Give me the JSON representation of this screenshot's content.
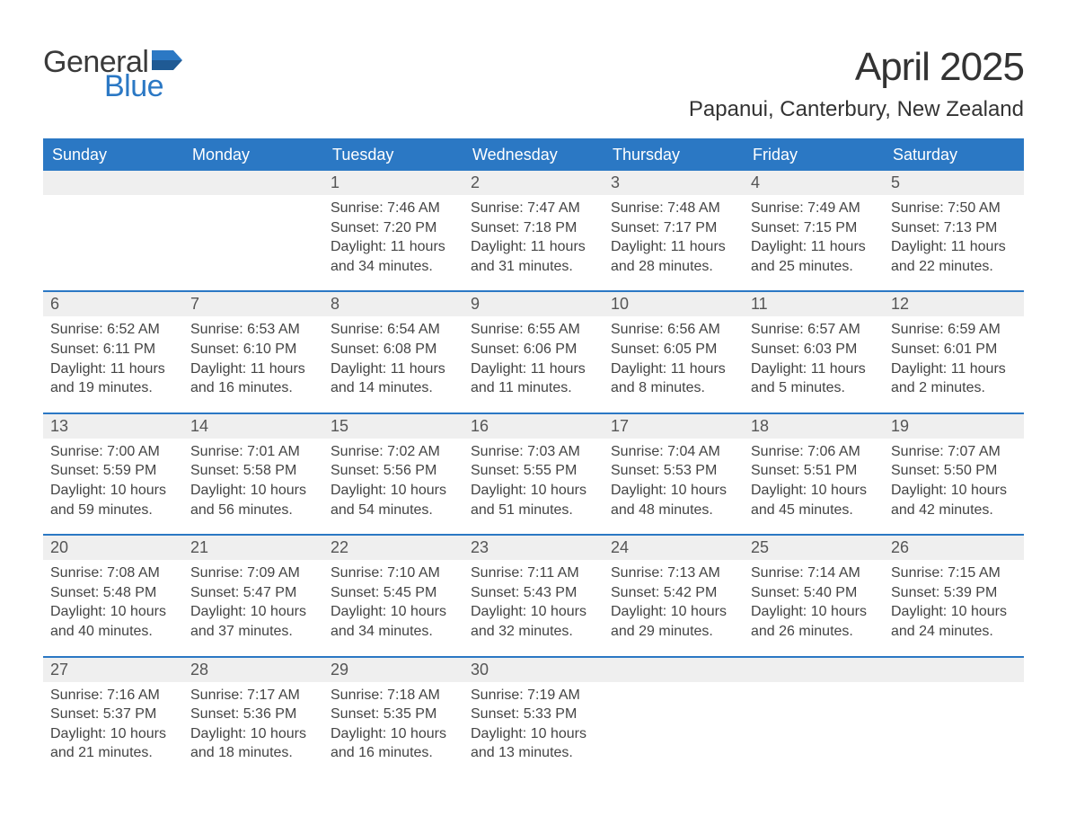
{
  "brand": {
    "general": "General",
    "blue": "Blue",
    "flag_color": "#2b78c4"
  },
  "title": "April 2025",
  "location": "Papanui, Canterbury, New Zealand",
  "colors": {
    "header_bg": "#2b78c4",
    "header_text": "#ffffff",
    "daynum_bg": "#efefef",
    "week_border": "#2b78c4",
    "body_text": "#424242",
    "page_bg": "#ffffff"
  },
  "typography": {
    "title_fontsize": 44,
    "location_fontsize": 24,
    "weekday_fontsize": 18,
    "daynum_fontsize": 18,
    "body_fontsize": 16
  },
  "layout": {
    "columns": 7,
    "rows": 5,
    "leading_blanks": 2,
    "trailing_blanks": 3
  },
  "weekdays": [
    "Sunday",
    "Monday",
    "Tuesday",
    "Wednesday",
    "Thursday",
    "Friday",
    "Saturday"
  ],
  "days": [
    {
      "n": "1",
      "sr": "Sunrise: 7:46 AM",
      "ss": "Sunset: 7:20 PM",
      "dl": "Daylight: 11 hours and 34 minutes."
    },
    {
      "n": "2",
      "sr": "Sunrise: 7:47 AM",
      "ss": "Sunset: 7:18 PM",
      "dl": "Daylight: 11 hours and 31 minutes."
    },
    {
      "n": "3",
      "sr": "Sunrise: 7:48 AM",
      "ss": "Sunset: 7:17 PM",
      "dl": "Daylight: 11 hours and 28 minutes."
    },
    {
      "n": "4",
      "sr": "Sunrise: 7:49 AM",
      "ss": "Sunset: 7:15 PM",
      "dl": "Daylight: 11 hours and 25 minutes."
    },
    {
      "n": "5",
      "sr": "Sunrise: 7:50 AM",
      "ss": "Sunset: 7:13 PM",
      "dl": "Daylight: 11 hours and 22 minutes."
    },
    {
      "n": "6",
      "sr": "Sunrise: 6:52 AM",
      "ss": "Sunset: 6:11 PM",
      "dl": "Daylight: 11 hours and 19 minutes."
    },
    {
      "n": "7",
      "sr": "Sunrise: 6:53 AM",
      "ss": "Sunset: 6:10 PM",
      "dl": "Daylight: 11 hours and 16 minutes."
    },
    {
      "n": "8",
      "sr": "Sunrise: 6:54 AM",
      "ss": "Sunset: 6:08 PM",
      "dl": "Daylight: 11 hours and 14 minutes."
    },
    {
      "n": "9",
      "sr": "Sunrise: 6:55 AM",
      "ss": "Sunset: 6:06 PM",
      "dl": "Daylight: 11 hours and 11 minutes."
    },
    {
      "n": "10",
      "sr": "Sunrise: 6:56 AM",
      "ss": "Sunset: 6:05 PM",
      "dl": "Daylight: 11 hours and 8 minutes."
    },
    {
      "n": "11",
      "sr": "Sunrise: 6:57 AM",
      "ss": "Sunset: 6:03 PM",
      "dl": "Daylight: 11 hours and 5 minutes."
    },
    {
      "n": "12",
      "sr": "Sunrise: 6:59 AM",
      "ss": "Sunset: 6:01 PM",
      "dl": "Daylight: 11 hours and 2 minutes."
    },
    {
      "n": "13",
      "sr": "Sunrise: 7:00 AM",
      "ss": "Sunset: 5:59 PM",
      "dl": "Daylight: 10 hours and 59 minutes."
    },
    {
      "n": "14",
      "sr": "Sunrise: 7:01 AM",
      "ss": "Sunset: 5:58 PM",
      "dl": "Daylight: 10 hours and 56 minutes."
    },
    {
      "n": "15",
      "sr": "Sunrise: 7:02 AM",
      "ss": "Sunset: 5:56 PM",
      "dl": "Daylight: 10 hours and 54 minutes."
    },
    {
      "n": "16",
      "sr": "Sunrise: 7:03 AM",
      "ss": "Sunset: 5:55 PM",
      "dl": "Daylight: 10 hours and 51 minutes."
    },
    {
      "n": "17",
      "sr": "Sunrise: 7:04 AM",
      "ss": "Sunset: 5:53 PM",
      "dl": "Daylight: 10 hours and 48 minutes."
    },
    {
      "n": "18",
      "sr": "Sunrise: 7:06 AM",
      "ss": "Sunset: 5:51 PM",
      "dl": "Daylight: 10 hours and 45 minutes."
    },
    {
      "n": "19",
      "sr": "Sunrise: 7:07 AM",
      "ss": "Sunset: 5:50 PM",
      "dl": "Daylight: 10 hours and 42 minutes."
    },
    {
      "n": "20",
      "sr": "Sunrise: 7:08 AM",
      "ss": "Sunset: 5:48 PM",
      "dl": "Daylight: 10 hours and 40 minutes."
    },
    {
      "n": "21",
      "sr": "Sunrise: 7:09 AM",
      "ss": "Sunset: 5:47 PM",
      "dl": "Daylight: 10 hours and 37 minutes."
    },
    {
      "n": "22",
      "sr": "Sunrise: 7:10 AM",
      "ss": "Sunset: 5:45 PM",
      "dl": "Daylight: 10 hours and 34 minutes."
    },
    {
      "n": "23",
      "sr": "Sunrise: 7:11 AM",
      "ss": "Sunset: 5:43 PM",
      "dl": "Daylight: 10 hours and 32 minutes."
    },
    {
      "n": "24",
      "sr": "Sunrise: 7:13 AM",
      "ss": "Sunset: 5:42 PM",
      "dl": "Daylight: 10 hours and 29 minutes."
    },
    {
      "n": "25",
      "sr": "Sunrise: 7:14 AM",
      "ss": "Sunset: 5:40 PM",
      "dl": "Daylight: 10 hours and 26 minutes."
    },
    {
      "n": "26",
      "sr": "Sunrise: 7:15 AM",
      "ss": "Sunset: 5:39 PM",
      "dl": "Daylight: 10 hours and 24 minutes."
    },
    {
      "n": "27",
      "sr": "Sunrise: 7:16 AM",
      "ss": "Sunset: 5:37 PM",
      "dl": "Daylight: 10 hours and 21 minutes."
    },
    {
      "n": "28",
      "sr": "Sunrise: 7:17 AM",
      "ss": "Sunset: 5:36 PM",
      "dl": "Daylight: 10 hours and 18 minutes."
    },
    {
      "n": "29",
      "sr": "Sunrise: 7:18 AM",
      "ss": "Sunset: 5:35 PM",
      "dl": "Daylight: 10 hours and 16 minutes."
    },
    {
      "n": "30",
      "sr": "Sunrise: 7:19 AM",
      "ss": "Sunset: 5:33 PM",
      "dl": "Daylight: 10 hours and 13 minutes."
    }
  ]
}
